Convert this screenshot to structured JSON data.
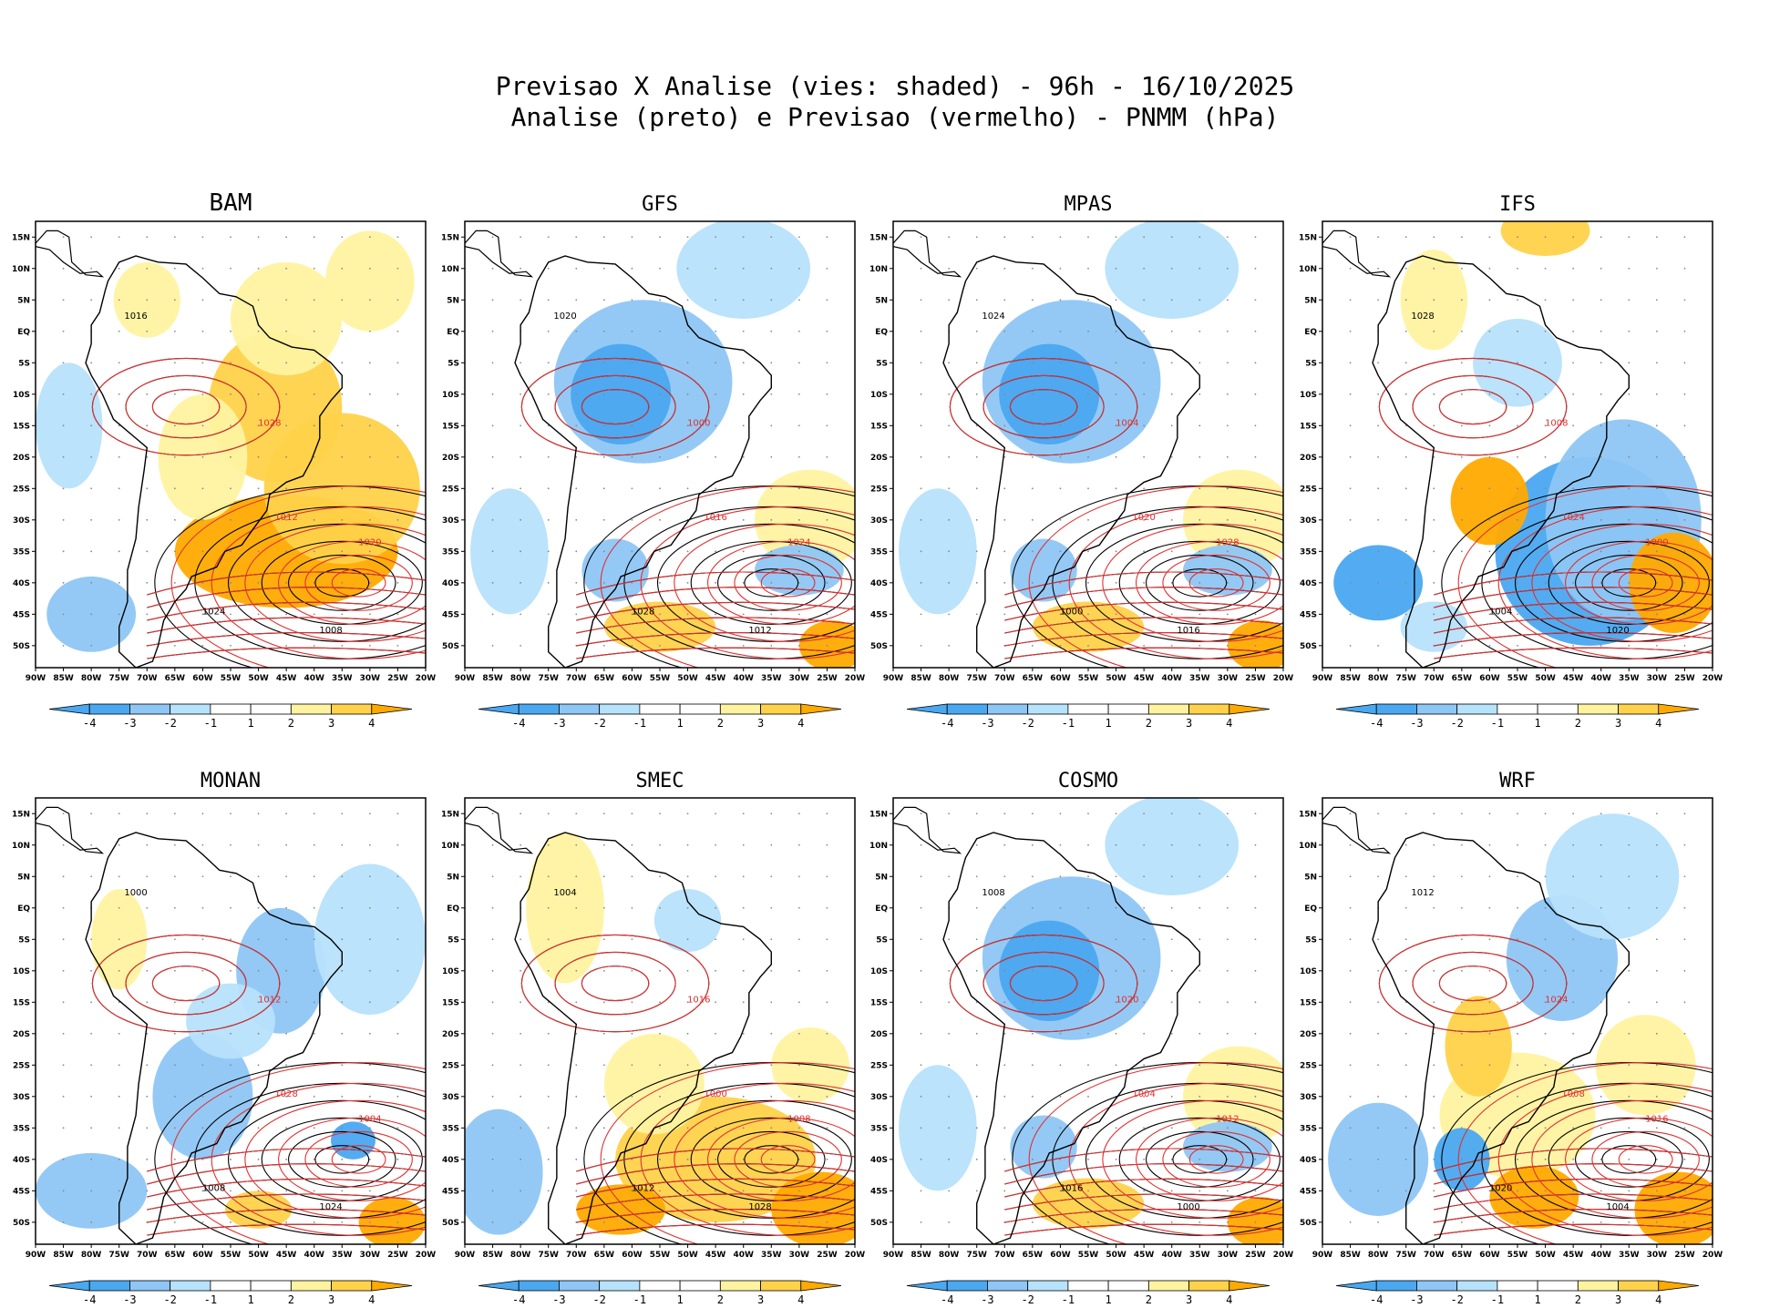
{
  "header": {
    "title_line1": "Previsao X Analise (vies: shaded) - 96h - 16/10/2025",
    "title_line2": "Analise (preto) e Previsao (vermelho) - PNMM (hPa)"
  },
  "colors": {
    "neg4": "#4aa8f0",
    "neg3": "#8ec6f5",
    "neg2": "#b7e2fb",
    "neg1": "#ffffff",
    "pos1": "#ffffff",
    "pos2": "#fff3a0",
    "pos3": "#ffd24a",
    "pos4": "#ffaa00",
    "analysis_line": "#000000",
    "forecast_line": "#e03030",
    "grid": "#888888"
  },
  "chart_data": {
    "type": "heatmap",
    "panels": [
      {
        "model": "BAM",
        "bias": "warm"
      },
      {
        "model": "GFS",
        "bias": "cold-north"
      },
      {
        "model": "MPAS",
        "bias": "cold-north"
      },
      {
        "model": "IFS",
        "bias": "cold-south"
      },
      {
        "model": "MONAN",
        "bias": "cold-east"
      },
      {
        "model": "SMEC",
        "bias": "warm-south"
      },
      {
        "model": "COSMO",
        "bias": "cold-north"
      },
      {
        "model": "WRF",
        "bias": "mixed"
      }
    ],
    "x_ticks": [
      "90W",
      "85W",
      "80W",
      "75W",
      "70W",
      "65W",
      "60W",
      "55W",
      "50W",
      "45W",
      "40W",
      "35W",
      "30W",
      "25W",
      "20W"
    ],
    "y_ticks": [
      "15N",
      "10N",
      "5N",
      "EQ",
      "5S",
      "10S",
      "15S",
      "20S",
      "25S",
      "30S",
      "35S",
      "40S",
      "45S",
      "50S"
    ],
    "colorbar": {
      "labels": [
        "-4",
        "-3",
        "-2",
        "-1",
        "1",
        "2",
        "3",
        "4"
      ],
      "bins": [
        "<-4",
        "-4 to -3",
        "-3 to -2",
        "-2 to -1",
        "-1 to 1",
        "1 to 2",
        "2 to 3",
        "3 to 4",
        ">4"
      ]
    },
    "isobar_labels": [
      "1000",
      "1004",
      "1008",
      "1012",
      "1016",
      "1020",
      "1024",
      "1028"
    ]
  }
}
